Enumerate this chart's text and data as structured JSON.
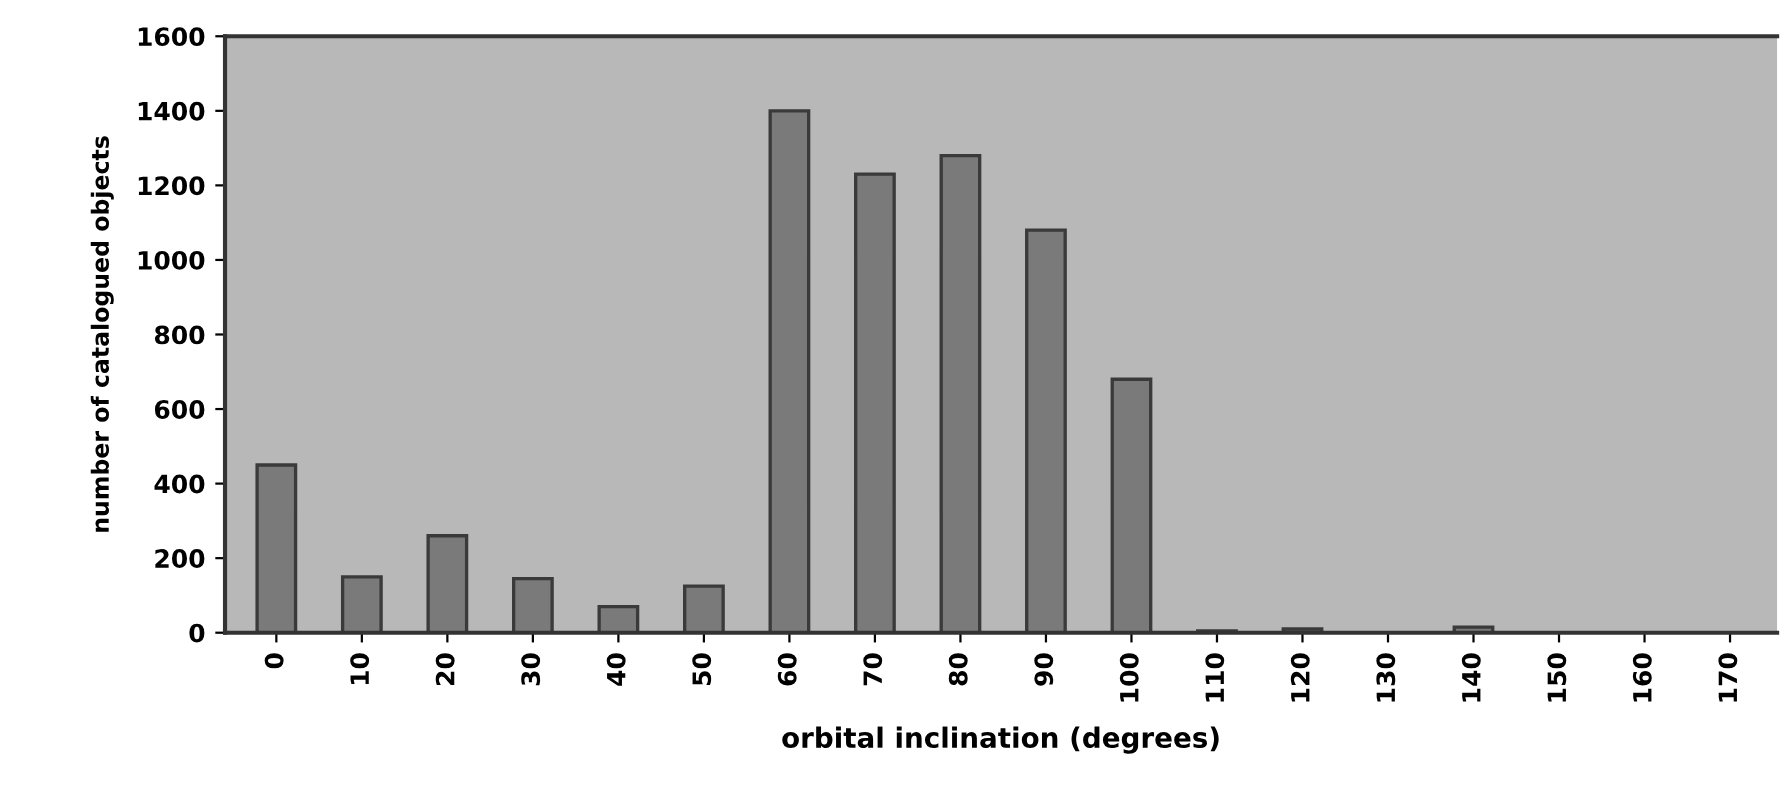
{
  "chart_data": {
    "type": "bar",
    "xlabel": "orbital inclination (degrees)",
    "ylabel": "number of catalogued objects",
    "categories": [
      "0",
      "10",
      "20",
      "30",
      "40",
      "50",
      "60",
      "70",
      "80",
      "90",
      "100",
      "110",
      "120",
      "130",
      "140",
      "150",
      "160",
      "170"
    ],
    "values": [
      450,
      150,
      260,
      145,
      70,
      125,
      1400,
      1230,
      1280,
      1080,
      680,
      5,
      10,
      0,
      15,
      0,
      0,
      0
    ],
    "color": "#7a7a7a",
    "ylim": [
      0,
      1600
    ],
    "yticks": [
      0,
      200,
      400,
      600,
      800,
      1000,
      1200,
      1400,
      1600
    ],
    "grid": false
  }
}
